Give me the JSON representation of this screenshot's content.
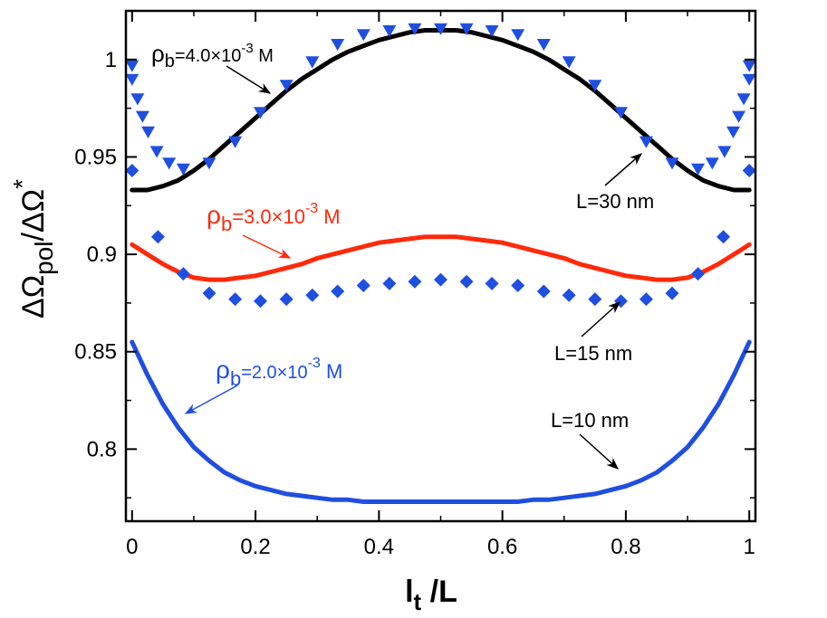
{
  "chart_data": {
    "type": "line",
    "title": "",
    "xlabel": {
      "main": "l",
      "sub": "t",
      "tail": " /L"
    },
    "ylabel": {
      "main": "ΔΩ",
      "sub": "pol",
      "mid": "/ΔΩ",
      "sup": "*"
    },
    "xlim": [
      -0.01,
      1.01
    ],
    "ylim": [
      0.763,
      1.025
    ],
    "x_ticks": [
      0,
      0.2,
      0.4,
      0.6,
      0.8,
      1
    ],
    "x_tick_labels": [
      "0",
      "0.2",
      "0.4",
      "0.6",
      "0.8",
      "1"
    ],
    "y_ticks": [
      0.8,
      0.85,
      0.9,
      0.95,
      1
    ],
    "y_tick_labels": [
      "0.8",
      "0.85",
      "0.9",
      "0.95",
      "1"
    ],
    "grid": false,
    "line_series": [
      {
        "name": "L=30 nm, ρb=4.0×10^-3 M",
        "color": "#000000",
        "x": [
          0,
          0.025,
          0.05,
          0.075,
          0.1,
          0.125,
          0.15,
          0.175,
          0.2,
          0.225,
          0.25,
          0.275,
          0.3,
          0.325,
          0.35,
          0.375,
          0.4,
          0.425,
          0.45,
          0.475,
          0.5,
          0.525,
          0.55,
          0.575,
          0.6,
          0.625,
          0.65,
          0.675,
          0.7,
          0.725,
          0.75,
          0.775,
          0.8,
          0.825,
          0.85,
          0.875,
          0.9,
          0.925,
          0.95,
          0.975,
          1
        ],
        "y": [
          0.933,
          0.933,
          0.935,
          0.938,
          0.943,
          0.949,
          0.956,
          0.963,
          0.97,
          0.977,
          0.984,
          0.99,
          0.995,
          1.0,
          1.004,
          1.007,
          1.01,
          1.012,
          1.014,
          1.015,
          1.015,
          1.015,
          1.014,
          1.012,
          1.01,
          1.007,
          1.004,
          1.0,
          0.995,
          0.99,
          0.984,
          0.977,
          0.97,
          0.963,
          0.956,
          0.949,
          0.943,
          0.938,
          0.935,
          0.933,
          0.933
        ]
      },
      {
        "name": "L=15 nm, ρb=3.0×10^-3 M",
        "color": "#ff2a0a",
        "x": [
          0,
          0.025,
          0.05,
          0.075,
          0.1,
          0.125,
          0.15,
          0.175,
          0.2,
          0.225,
          0.25,
          0.275,
          0.3,
          0.325,
          0.35,
          0.375,
          0.4,
          0.425,
          0.45,
          0.475,
          0.5,
          0.525,
          0.55,
          0.575,
          0.6,
          0.625,
          0.65,
          0.675,
          0.7,
          0.725,
          0.75,
          0.775,
          0.8,
          0.825,
          0.85,
          0.875,
          0.9,
          0.925,
          0.95,
          0.975,
          1
        ],
        "y": [
          0.905,
          0.9,
          0.895,
          0.891,
          0.888,
          0.887,
          0.887,
          0.888,
          0.889,
          0.891,
          0.893,
          0.895,
          0.898,
          0.9,
          0.902,
          0.904,
          0.906,
          0.907,
          0.908,
          0.909,
          0.909,
          0.909,
          0.908,
          0.907,
          0.906,
          0.904,
          0.902,
          0.9,
          0.898,
          0.895,
          0.893,
          0.891,
          0.889,
          0.888,
          0.887,
          0.887,
          0.888,
          0.891,
          0.895,
          0.9,
          0.905
        ]
      },
      {
        "name": "L=10 nm, ρb=2.0×10^-3 M",
        "color": "#1f4fe0",
        "x": [
          0,
          0.025,
          0.05,
          0.075,
          0.1,
          0.125,
          0.15,
          0.175,
          0.2,
          0.225,
          0.25,
          0.275,
          0.3,
          0.325,
          0.35,
          0.375,
          0.4,
          0.425,
          0.45,
          0.475,
          0.5,
          0.525,
          0.55,
          0.575,
          0.6,
          0.625,
          0.65,
          0.675,
          0.7,
          0.725,
          0.75,
          0.775,
          0.8,
          0.825,
          0.85,
          0.875,
          0.9,
          0.925,
          0.95,
          0.975,
          1
        ],
        "y": [
          0.855,
          0.838,
          0.823,
          0.811,
          0.801,
          0.794,
          0.788,
          0.784,
          0.781,
          0.779,
          0.777,
          0.776,
          0.775,
          0.774,
          0.774,
          0.773,
          0.773,
          0.773,
          0.773,
          0.773,
          0.773,
          0.773,
          0.773,
          0.773,
          0.773,
          0.773,
          0.774,
          0.774,
          0.775,
          0.776,
          0.777,
          0.779,
          0.781,
          0.784,
          0.788,
          0.794,
          0.801,
          0.811,
          0.823,
          0.838,
          0.855
        ]
      }
    ],
    "marker_series": [
      {
        "name": "L=30 nm triangles",
        "marker": "triangle-down",
        "color": "#1f4fe0",
        "x": [
          0.0,
          0.0,
          0.009,
          0.017,
          0.026,
          0.04,
          0.06,
          0.083,
          0.125,
          0.167,
          0.208,
          0.25,
          0.292,
          0.333,
          0.375,
          0.417,
          0.458,
          0.5,
          0.542,
          0.583,
          0.625,
          0.667,
          0.708,
          0.75,
          0.792,
          0.833,
          0.875,
          0.917,
          0.94,
          0.96,
          0.974,
          0.983,
          0.991,
          1.0,
          1.0
        ],
        "y": [
          0.997,
          0.99,
          0.98,
          0.971,
          0.963,
          0.953,
          0.947,
          0.944,
          0.947,
          0.958,
          0.973,
          0.987,
          0.999,
          1.008,
          1.013,
          1.015,
          1.016,
          1.016,
          1.016,
          1.015,
          1.013,
          1.008,
          0.999,
          0.987,
          0.973,
          0.958,
          0.947,
          0.944,
          0.947,
          0.953,
          0.963,
          0.971,
          0.98,
          0.99,
          0.997
        ]
      },
      {
        "name": "L=30 nm diamonds",
        "marker": "diamond",
        "color": "#1f4fe0",
        "x": [
          0.0,
          1.0
        ],
        "y": [
          0.943,
          0.943
        ]
      },
      {
        "name": "L=15 nm diamonds",
        "marker": "diamond",
        "color": "#1f4fe0",
        "x": [
          0.042,
          0.083,
          0.125,
          0.167,
          0.208,
          0.25,
          0.292,
          0.333,
          0.375,
          0.417,
          0.458,
          0.5,
          0.542,
          0.583,
          0.625,
          0.667,
          0.708,
          0.75,
          0.792,
          0.833,
          0.875,
          0.917,
          0.958
        ],
        "y": [
          0.909,
          0.89,
          0.88,
          0.877,
          0.876,
          0.877,
          0.879,
          0.881,
          0.884,
          0.885,
          0.886,
          0.887,
          0.886,
          0.885,
          0.884,
          0.881,
          0.879,
          0.877,
          0.876,
          0.877,
          0.88,
          0.89,
          0.909
        ]
      }
    ],
    "annotations": [
      {
        "id": "rho-40",
        "main": "ρ",
        "sub": "b",
        "mid": "=4.0×10",
        "sup": "-3",
        "tail": " M",
        "color": "#000000"
      },
      {
        "id": "rho-30",
        "main": "ρ",
        "sub": "b",
        "mid": "=3.0×10",
        "sup": "-3",
        "tail": " M",
        "color": "#ff2a0a"
      },
      {
        "id": "rho-20",
        "main": "ρ",
        "sub": "b",
        "mid": "=2.0×10",
        "sup": "-3",
        "tail": " M",
        "color": "#1f4fe0"
      },
      {
        "id": "L30",
        "text": "L=30 nm",
        "color": "#000000"
      },
      {
        "id": "L15",
        "text": "L=15 nm",
        "color": "#000000"
      },
      {
        "id": "L10",
        "text": "L=10 nm",
        "color": "#000000"
      }
    ]
  }
}
